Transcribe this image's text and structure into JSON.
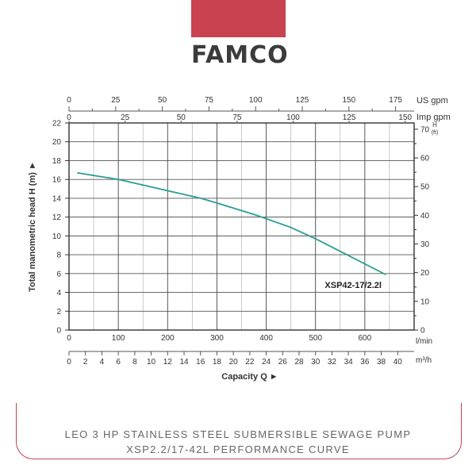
{
  "brand": {
    "logo_text": "FAMCO",
    "accent": "#c8424f"
  },
  "footer": {
    "line1": "LEO 3 HP STAINLESS STEEL SUBMERSIBLE SEWAGE PUMP",
    "line2": "XSP2.2/17-42L PERFORMANCE CURVE"
  },
  "chart_data": {
    "type": "line",
    "title": "",
    "xlabel": "Capacity Q",
    "ylabel": "Total manometric head H (m)",
    "x_unit": "l/min",
    "xlim": [
      0,
      700
    ],
    "ylim": [
      0,
      22
    ],
    "x_ticks": [
      0,
      100,
      200,
      300,
      400,
      500,
      600
    ],
    "y_ticks": [
      0,
      2,
      4,
      6,
      8,
      10,
      12,
      14,
      16,
      18,
      20,
      22
    ],
    "secondary_axes": {
      "us_gpm": {
        "label": "US gpm",
        "ticks": [
          0,
          25,
          50,
          75,
          100,
          125,
          150,
          175
        ]
      },
      "imp_gpm": {
        "label": "Imp gpm",
        "ticks": [
          0,
          25,
          50,
          75,
          100,
          125,
          150
        ]
      },
      "m3h": {
        "label": "m³/h",
        "ticks": [
          0,
          2,
          4,
          6,
          8,
          10,
          12,
          14,
          16,
          18,
          20,
          22,
          24,
          26,
          28,
          30,
          32,
          34,
          36,
          38,
          40
        ]
      },
      "h_ft": {
        "label": "H (ft)",
        "ticks": [
          0,
          10,
          20,
          30,
          40,
          50,
          60,
          70
        ]
      }
    },
    "grid": true,
    "series": [
      {
        "name": "XSP42-17/2.2l",
        "color": "#2a9d94",
        "x": [
          17,
          100,
          200,
          267,
          300,
          380,
          450,
          500,
          560,
          642
        ],
        "y": [
          16.7,
          16.0,
          14.8,
          14.0,
          13.5,
          12.2,
          10.9,
          9.7,
          8.1,
          5.9
        ]
      }
    ]
  }
}
